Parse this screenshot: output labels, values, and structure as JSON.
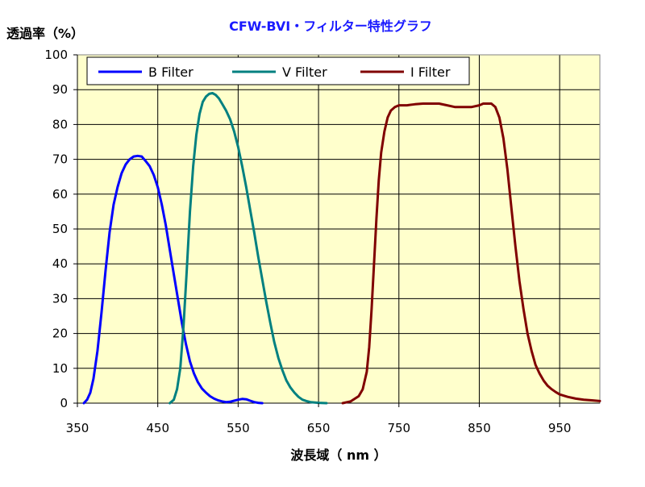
{
  "chart_data": {
    "type": "line",
    "title": "CFW-BVI・フィルター特性グラフ",
    "ylabel": "透過率（%）",
    "xlabel": "波長域（ nm ）",
    "xlim": [
      350,
      1000
    ],
    "ylim": [
      0,
      100
    ],
    "x_ticks": [
      "350",
      "450",
      "550",
      "650",
      "750",
      "850",
      "950"
    ],
    "y_ticks": [
      "0",
      "10",
      "20",
      "30",
      "40",
      "50",
      "60",
      "70",
      "80",
      "90",
      "100"
    ],
    "grid": true,
    "legend_position": "top",
    "plot_background": "#ffffcc",
    "series": [
      {
        "name": "B Filter",
        "color": "#0000ff",
        "x": [
          358,
          362,
          366,
          370,
          375,
          380,
          385,
          390,
          395,
          400,
          405,
          410,
          415,
          420,
          425,
          430,
          435,
          440,
          445,
          450,
          455,
          460,
          465,
          470,
          475,
          480,
          485,
          490,
          495,
          500,
          505,
          510,
          515,
          520,
          525,
          530,
          535,
          540,
          545,
          550,
          555,
          560,
          565,
          570,
          575,
          580
        ],
        "y": [
          0,
          1,
          3,
          7,
          15,
          26,
          38,
          49,
          57,
          62,
          66,
          68.5,
          70,
          70.8,
          71,
          70.8,
          69.5,
          68,
          65.5,
          62,
          57,
          51,
          44,
          37,
          30,
          23,
          17,
          12,
          8.5,
          6,
          4.2,
          3,
          2,
          1.3,
          0.8,
          0.5,
          0.3,
          0.4,
          0.7,
          1,
          1.2,
          1.1,
          0.7,
          0.3,
          0.1,
          0
        ]
      },
      {
        "name": "V Filter",
        "color": "#008080",
        "x": [
          465,
          470,
          474,
          478,
          482,
          486,
          490,
          494,
          498,
          502,
          506,
          510,
          514,
          518,
          522,
          526,
          530,
          535,
          540,
          545,
          550,
          555,
          560,
          565,
          570,
          575,
          580,
          585,
          590,
          595,
          600,
          605,
          610,
          615,
          620,
          625,
          630,
          635,
          640,
          650,
          660
        ],
        "y": [
          0,
          1,
          4,
          10,
          22,
          38,
          55,
          68,
          77,
          83,
          86.5,
          88,
          88.8,
          89,
          88.5,
          87.5,
          86,
          84,
          81.5,
          78,
          73.5,
          68,
          62,
          55.5,
          49,
          42,
          35.5,
          29,
          23,
          17.5,
          13,
          9.5,
          6.5,
          4.5,
          3,
          1.8,
          1,
          0.6,
          0.3,
          0.1,
          0
        ]
      },
      {
        "name": "I Filter",
        "color": "#800000",
        "x": [
          680,
          690,
          700,
          705,
          710,
          713,
          716,
          719,
          722,
          725,
          728,
          732,
          736,
          740,
          745,
          750,
          760,
          770,
          780,
          790,
          800,
          810,
          820,
          830,
          840,
          850,
          855,
          860,
          865,
          870,
          875,
          880,
          885,
          890,
          895,
          900,
          905,
          910,
          915,
          920,
          925,
          930,
          935,
          940,
          945,
          950,
          960,
          970,
          980,
          990,
          1000
        ],
        "y": [
          0,
          0.5,
          2,
          4,
          9,
          16,
          27,
          40,
          53,
          64,
          72,
          78,
          82,
          84,
          85,
          85.5,
          85.5,
          85.8,
          86,
          86,
          86,
          85.5,
          85,
          85,
          85,
          85.5,
          86,
          86,
          86,
          85,
          82,
          76,
          67,
          56,
          45,
          35,
          27,
          20,
          15,
          11,
          8.5,
          6.5,
          5,
          4,
          3.2,
          2.5,
          1.8,
          1.3,
          1,
          0.8,
          0.6
        ]
      }
    ]
  }
}
